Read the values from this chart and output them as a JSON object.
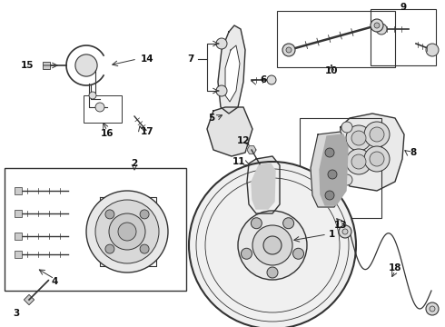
{
  "bg_color": "#ffffff",
  "line_color": "#333333",
  "label_color": "#111111",
  "label_fontsize": 7.5,
  "arrow_lw": 0.7,
  "figsize": [
    4.9,
    3.6
  ],
  "dpi": 100
}
